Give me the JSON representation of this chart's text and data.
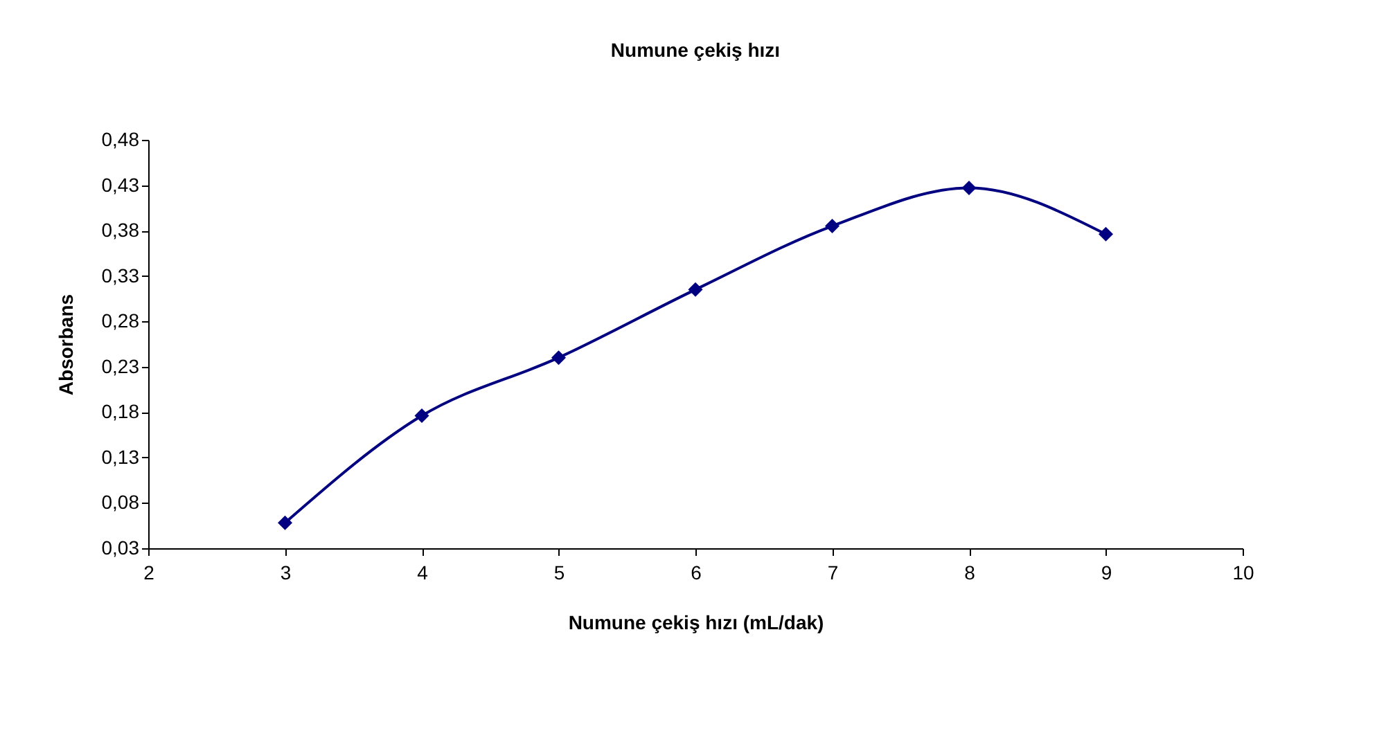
{
  "chart_data": {
    "type": "line",
    "title": "Numune çekiş hızı",
    "xlabel": "Numune çekiş hızı (mL/dak)",
    "ylabel": "Absorbans",
    "x": [
      3,
      4,
      5,
      6,
      7,
      8,
      9
    ],
    "series": [
      {
        "color": "#000080",
        "values": [
          0.058,
          0.176,
          0.24,
          0.315,
          0.385,
          0.427,
          0.376
        ]
      }
    ],
    "xlim": [
      2,
      10
    ],
    "xticks": [
      2,
      3,
      4,
      5,
      6,
      7,
      8,
      9,
      10
    ],
    "ylim": [
      0.03,
      0.48
    ],
    "yticks": [
      {
        "value": 0.03,
        "label": "0,03"
      },
      {
        "value": 0.08,
        "label": "0,08"
      },
      {
        "value": 0.13,
        "label": "0,13"
      },
      {
        "value": 0.18,
        "label": "0,18"
      },
      {
        "value": 0.23,
        "label": "0,23"
      },
      {
        "value": 0.28,
        "label": "0,28"
      },
      {
        "value": 0.33,
        "label": "0,33"
      },
      {
        "value": 0.38,
        "label": "0,38"
      },
      {
        "value": 0.43,
        "label": "0,43"
      },
      {
        "value": 0.48,
        "label": "0,48"
      }
    ],
    "grid": false,
    "legend": false,
    "marker": "diamond",
    "line_style": "solid"
  }
}
